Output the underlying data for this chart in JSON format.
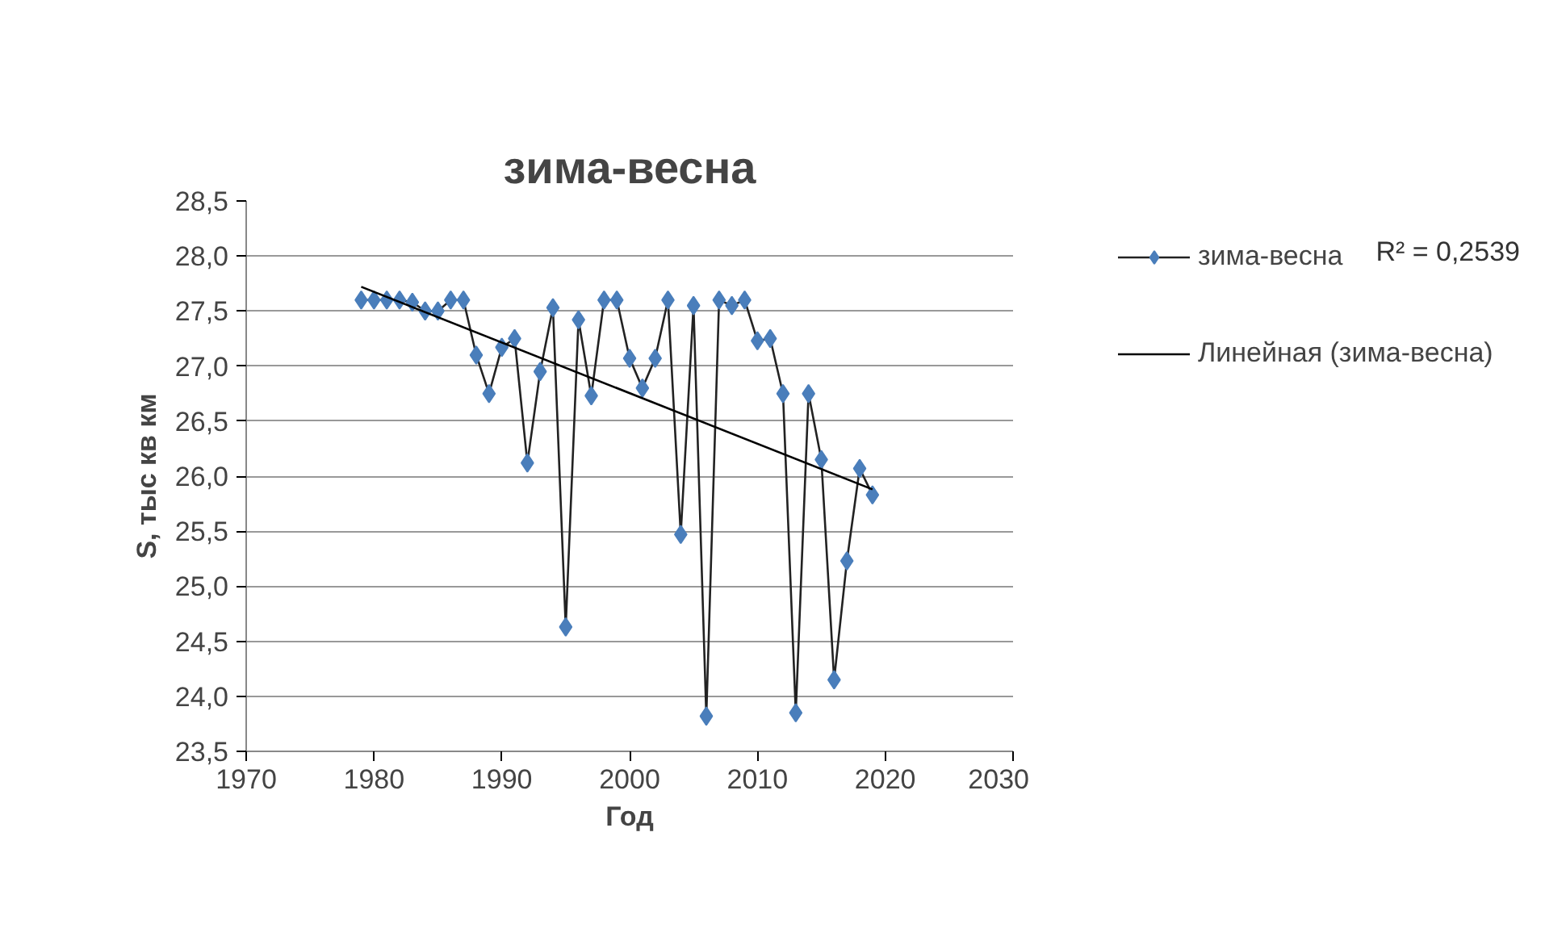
{
  "chart_data": {
    "type": "line",
    "title": "зима-весна",
    "xlabel": "Год",
    "ylabel": "S, тыс кв км",
    "x": [
      1979,
      1980,
      1981,
      1982,
      1983,
      1984,
      1985,
      1986,
      1987,
      1988,
      1989,
      1990,
      1991,
      1992,
      1993,
      1994,
      1995,
      1996,
      1997,
      1998,
      1999,
      2000,
      2001,
      2002,
      2003,
      2004,
      2005,
      2006,
      2007,
      2008,
      2009,
      2010,
      2011,
      2012,
      2013,
      2014,
      2015,
      2016,
      2017,
      2018,
      2019
    ],
    "series": [
      {
        "name": "зима-весна",
        "color": "#4a7ebb",
        "marker": "diamond",
        "values": [
          27.6,
          27.6,
          27.6,
          27.6,
          27.58,
          27.5,
          27.5,
          27.6,
          27.6,
          27.1,
          26.75,
          27.17,
          27.25,
          26.12,
          26.95,
          27.53,
          24.63,
          27.42,
          26.73,
          27.6,
          27.6,
          27.07,
          26.8,
          27.07,
          27.6,
          25.47,
          27.55,
          23.82,
          27.6,
          27.55,
          27.6,
          27.23,
          27.25,
          26.75,
          23.85,
          26.75,
          26.15,
          24.15,
          25.23,
          26.07,
          25.83
        ]
      },
      {
        "name": "Линейная (зима-весна)",
        "color": "#000000",
        "marker": "none",
        "x": [
          1979,
          2019
        ],
        "values": [
          27.72,
          25.88
        ]
      }
    ],
    "xlim": [
      1970,
      2030
    ],
    "xticks": [
      1970,
      1980,
      1990,
      2000,
      2010,
      2020,
      2030
    ],
    "ylim": [
      23.5,
      28.5
    ],
    "yticks": [
      {
        "value": 23.5,
        "label": "23,5"
      },
      {
        "value": 24,
        "label": "24,0"
      },
      {
        "value": 24.5,
        "label": "24,5"
      },
      {
        "value": 25,
        "label": "25,0"
      },
      {
        "value": 25.5,
        "label": "25,5"
      },
      {
        "value": 26,
        "label": "26,0"
      },
      {
        "value": 26.5,
        "label": "26,5"
      },
      {
        "value": 27,
        "label": "27,0"
      },
      {
        "value": 27.5,
        "label": "27,5"
      },
      {
        "value": 28,
        "label": "28,0"
      },
      {
        "value": 28.5,
        "label": "28,5"
      }
    ],
    "grid": "y",
    "legend": "right",
    "annotations": [
      "R² = 0,2539"
    ]
  }
}
